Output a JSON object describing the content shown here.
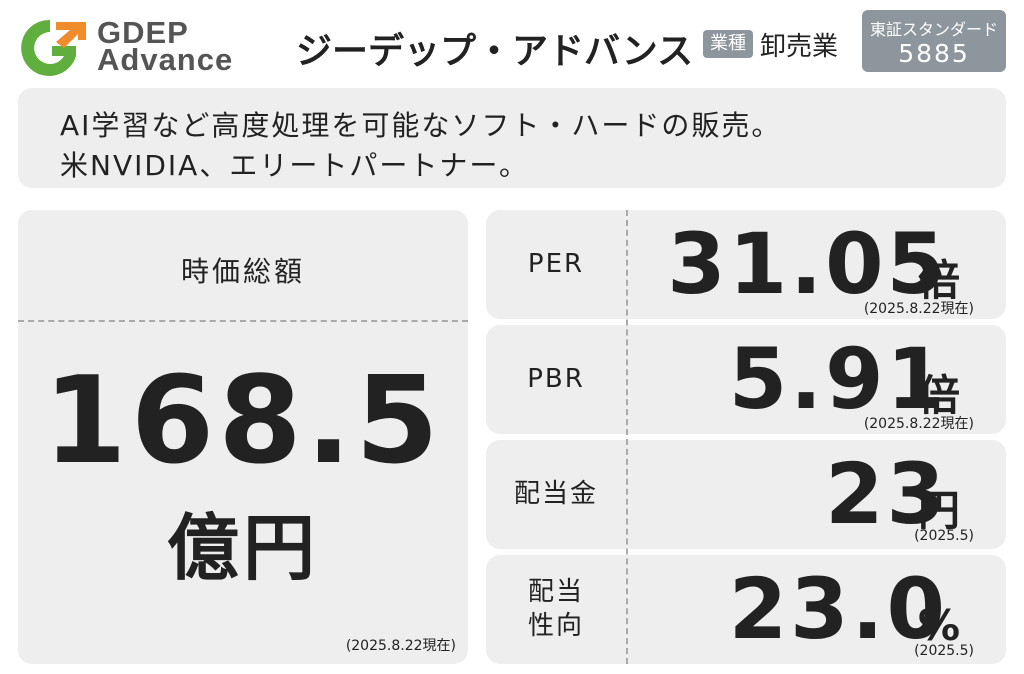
{
  "header": {
    "logo_top": "GDEP",
    "logo_bottom": "Advance",
    "company_name": "ジーデップ・アドバンス",
    "industry_label": "業種",
    "industry": "卸売業",
    "market": "東証スタンダード",
    "code": "5885"
  },
  "description": [
    "AI学習など高度処理を可能なソフト・ハードの販売。",
    "米NVIDIA、エリートパートナー。"
  ],
  "market_cap": {
    "label": "時価総額",
    "value": "168.5",
    "unit": "億円",
    "date": "(2025.8.22現在)"
  },
  "metrics": [
    {
      "label": [
        "PER"
      ],
      "value": "31.05",
      "unit": "倍",
      "date": "(2025.8.22現在)"
    },
    {
      "label": [
        "PBR"
      ],
      "value": "5.91",
      "unit": "倍",
      "date": "(2025.8.22現在)"
    },
    {
      "label": [
        "配当金"
      ],
      "value": "23",
      "unit": "円",
      "date": "(2025.5)"
    },
    {
      "label": [
        "配当",
        "性向"
      ],
      "value": "23.0",
      "unit": "%",
      "date": "(2025.5)"
    }
  ]
}
